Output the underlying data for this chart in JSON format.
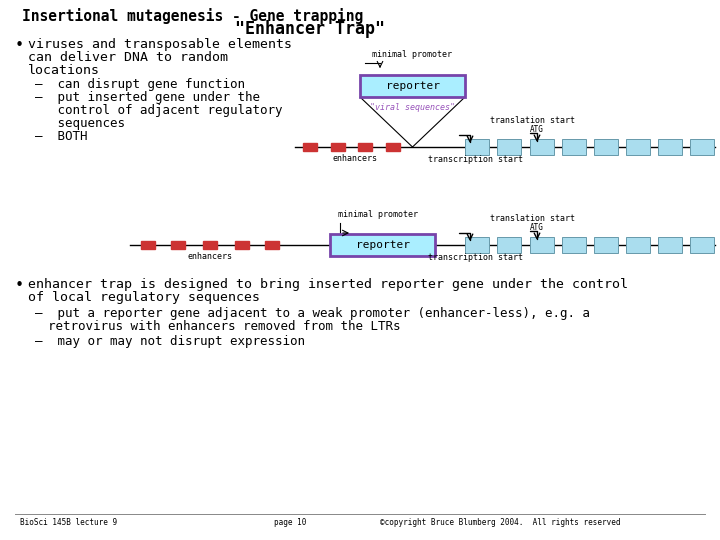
{
  "title": "Insertional mutagenesis - Gene trapping",
  "subtitle": "\"Enhancer Trap\"",
  "bg_color": "#ffffff",
  "text_color": "#000000",
  "reporter_color": "#aaeeff",
  "reporter_border": "#7744aa",
  "enhancer_color": "#cc3333",
  "exon_color": "#aaddee",
  "line_color": "#000000",
  "viral_color": "#9955bb",
  "footer_left": "BioSci 145B lecture 9",
  "footer_mid": "page 10",
  "footer_right": "©copyright Bruce Blumberg 2004.  All rights reserved"
}
